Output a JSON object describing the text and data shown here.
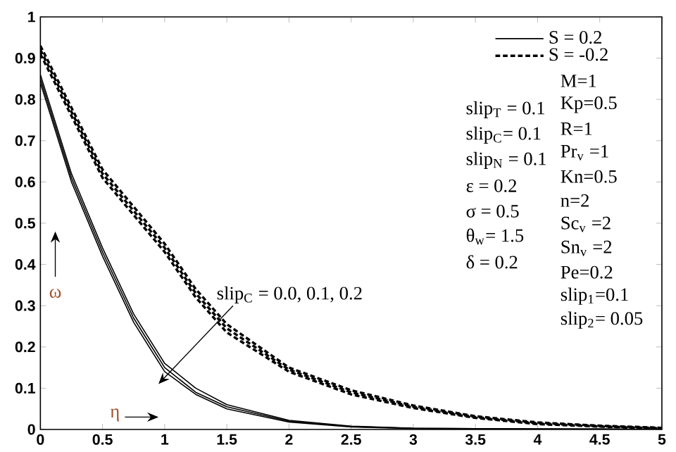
{
  "chart_data": {
    "type": "line",
    "xlabel": "η",
    "ylabel": "ω",
    "x": [
      0,
      0.25,
      0.5,
      0.75,
      1,
      1.25,
      1.5,
      2,
      2.5,
      3,
      3.5,
      4,
      4.5,
      5
    ],
    "series": [
      {
        "name": "S = 0.2",
        "color": "#000000",
        "line_style": "solid",
        "values": [
          0.86,
          0.62,
          0.44,
          0.28,
          0.16,
          0.1,
          0.06,
          0.022,
          0.008,
          0.003,
          0.002,
          0.001,
          0.001,
          0
        ]
      },
      {
        "color": "#000000",
        "line_style": "solid",
        "values": [
          0.85,
          0.61,
          0.43,
          0.27,
          0.15,
          0.09,
          0.055,
          0.02,
          0.007,
          0.003,
          0.002,
          0.001,
          0.001,
          0
        ]
      },
      {
        "color": "#000000",
        "line_style": "solid",
        "values": [
          0.84,
          0.6,
          0.42,
          0.26,
          0.14,
          0.085,
          0.05,
          0.018,
          0.006,
          0.002,
          0.001,
          0.001,
          0,
          0
        ]
      },
      {
        "name": "S = -0.2",
        "color": "#000000",
        "line_style": "dashed",
        "values": [
          0.93,
          0.78,
          0.63,
          0.54,
          0.45,
          0.34,
          0.255,
          0.15,
          0.095,
          0.058,
          0.032,
          0.017,
          0.009,
          0.004
        ]
      },
      {
        "color": "#000000",
        "line_style": "dashed",
        "values": [
          0.92,
          0.77,
          0.62,
          0.53,
          0.44,
          0.33,
          0.245,
          0.145,
          0.09,
          0.055,
          0.03,
          0.015,
          0.008,
          0.003
        ]
      },
      {
        "color": "#000000",
        "line_style": "dashed",
        "values": [
          0.91,
          0.76,
          0.61,
          0.52,
          0.43,
          0.32,
          0.235,
          0.14,
          0.085,
          0.052,
          0.028,
          0.013,
          0.007,
          0.002
        ]
      }
    ],
    "xlim": [
      0,
      5
    ],
    "ylim": [
      0,
      1
    ],
    "xticks": [
      0,
      0.5,
      1,
      1.5,
      2,
      2.5,
      3,
      3.5,
      4,
      4.5,
      5
    ],
    "yticks": [
      0,
      0.1,
      0.2,
      0.3,
      0.4,
      0.5,
      0.6,
      0.7,
      0.8,
      0.9,
      1
    ],
    "legend": "top right",
    "annotations": [
      "slip$_{C}$ = 0.0, 0.1, 0.2",
      "slip$_{T}$ = 0.1",
      "slip$_{C}$= 0.1",
      "slip$_{N}$ = 0.1",
      "ε = 0.2",
      "σ = 0.5",
      "θ$_{w}$=  1.5",
      "δ = 0.2",
      "M=1",
      "Kp=0.5",
      "R=1",
      "Pr$_{v}$ =1",
      "Kn=0.5",
      "n=2",
      "Sc$_{v}$ =2",
      "Sn$_{v}$ =2",
      "Pe=0.2",
      "slip$_{1}$=0.1",
      "slip$_{2}$= 0.05"
    ]
  }
}
